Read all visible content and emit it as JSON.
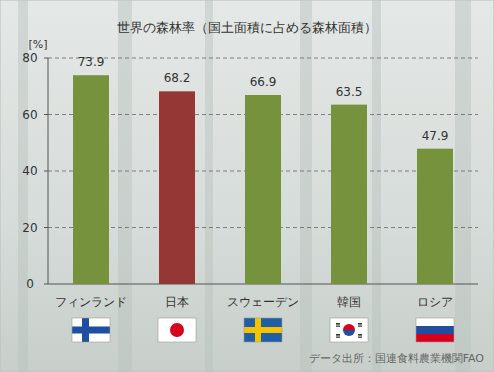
{
  "chart_data": {
    "type": "bar",
    "title": "世界の森林率（国土面積に占める森林面積）",
    "y_label": "[%]",
    "source": "データ出所：国連食料農業機関FAO",
    "categories": [
      "フィンランド",
      "日本",
      "スウェーデン",
      "韓国",
      "ロシア"
    ],
    "values": [
      73.9,
      68.2,
      66.9,
      63.5,
      47.9
    ],
    "colors": [
      "#76923c",
      "#953735",
      "#76923c",
      "#76923c",
      "#76923c"
    ],
    "ylim": [
      0,
      80
    ],
    "yticks": [
      0,
      20,
      40,
      60,
      80
    ],
    "grid": true,
    "data_labels": true
  }
}
